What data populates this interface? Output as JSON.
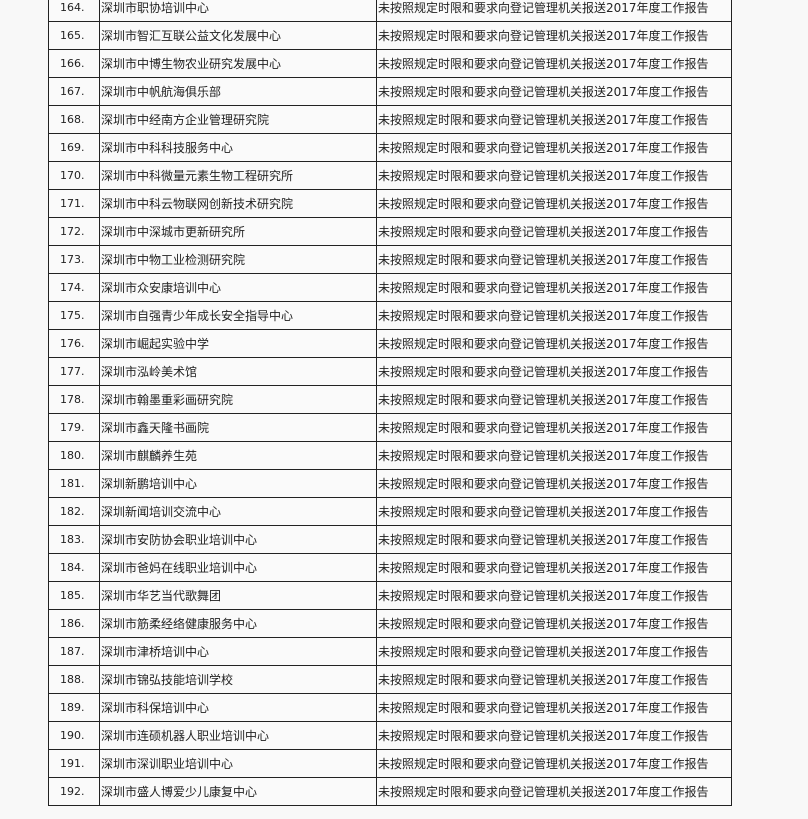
{
  "table": {
    "reason": "未按照规定时限和要求向登记管理机关报送2017年度工作报告",
    "rows": [
      {
        "num": "164.",
        "name": "深圳市职协培训中心"
      },
      {
        "num": "165.",
        "name": "深圳市智汇互联公益文化发展中心"
      },
      {
        "num": "166.",
        "name": "深圳市中博生物农业研究发展中心"
      },
      {
        "num": "167.",
        "name": "深圳市中帆航海俱乐部"
      },
      {
        "num": "168.",
        "name": "深圳市中经南方企业管理研究院"
      },
      {
        "num": "169.",
        "name": "深圳市中科科技服务中心"
      },
      {
        "num": "170.",
        "name": "深圳市中科微量元素生物工程研究所"
      },
      {
        "num": "171.",
        "name": "深圳市中科云物联网创新技术研究院"
      },
      {
        "num": "172.",
        "name": "深圳市中深城市更新研究所"
      },
      {
        "num": "173.",
        "name": "深圳市中物工业检测研究院"
      },
      {
        "num": "174.",
        "name": "深圳市众安康培训中心"
      },
      {
        "num": "175.",
        "name": "深圳市自强青少年成长安全指导中心"
      },
      {
        "num": "176.",
        "name": "深圳市崛起实验中学"
      },
      {
        "num": "177.",
        "name": "深圳市泓岭美术馆"
      },
      {
        "num": "178.",
        "name": "深圳市翰墨重彩画研究院"
      },
      {
        "num": "179.",
        "name": "深圳市鑫天隆书画院"
      },
      {
        "num": "180.",
        "name": "深圳市麒麟养生苑"
      },
      {
        "num": "181.",
        "name": "深圳新鹏培训中心"
      },
      {
        "num": "182.",
        "name": "深圳新闻培训交流中心"
      },
      {
        "num": "183.",
        "name": "深圳市安防协会职业培训中心"
      },
      {
        "num": "184.",
        "name": "深圳市爸妈在线职业培训中心"
      },
      {
        "num": "185.",
        "name": "深圳市华艺当代歌舞团"
      },
      {
        "num": "186.",
        "name": "深圳市筋柔经络健康服务中心"
      },
      {
        "num": "187.",
        "name": "深圳市津桥培训中心"
      },
      {
        "num": "188.",
        "name": "深圳市锦弘技能培训学校"
      },
      {
        "num": "189.",
        "name": "深圳市科保培训中心"
      },
      {
        "num": "190.",
        "name": "深圳市连硕机器人职业培训中心"
      },
      {
        "num": "191.",
        "name": "深圳市深训职业培训中心"
      },
      {
        "num": "192.",
        "name": "深圳市盛人博爱少儿康复中心"
      }
    ]
  }
}
